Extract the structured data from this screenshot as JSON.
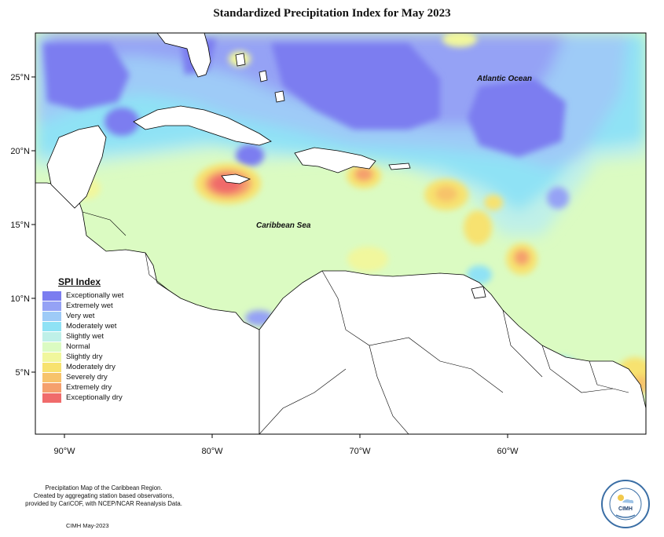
{
  "title": "Standardized Precipitation Index for May 2023",
  "axes": {
    "x_ticks": [
      "90°W",
      "80°W",
      "70°W",
      "60°W"
    ],
    "y_ticks": [
      "25°N",
      "20°N",
      "15°N",
      "10°N",
      "5°N"
    ]
  },
  "labels": {
    "atlantic": "Atlantic Ocean",
    "caribbean": "Caribbean Sea"
  },
  "legend": {
    "title": "SPI Index",
    "items": [
      {
        "label": "Exceptionally wet",
        "color": "#7b7df0"
      },
      {
        "label": "Extremely wet",
        "color": "#95a2f5"
      },
      {
        "label": "Very wet",
        "color": "#9ecbf7"
      },
      {
        "label": "Moderately wet",
        "color": "#8fe2f5"
      },
      {
        "label": "Slightly wet",
        "color": "#bff0e8"
      },
      {
        "label": "Normal",
        "color": "#dbfbc2"
      },
      {
        "label": "Slightly dry",
        "color": "#f1f79d"
      },
      {
        "label": "Moderately dry",
        "color": "#f7e26f"
      },
      {
        "label": "Severely dry",
        "color": "#f7c36b"
      },
      {
        "label": "Extremely dry",
        "color": "#f5a06d"
      },
      {
        "label": "Exceptionally dry",
        "color": "#f06b6b"
      }
    ]
  },
  "footnote": {
    "line1": "Precipitation Map of the Caribbean Region.",
    "line2": "Created by aggregating station based observations,",
    "line3": "provided by CariCOF, with NCEP/NCAR Reanalysis Data."
  },
  "credit": "CIMH May-2023",
  "logo": {
    "text": "CIMH"
  }
}
